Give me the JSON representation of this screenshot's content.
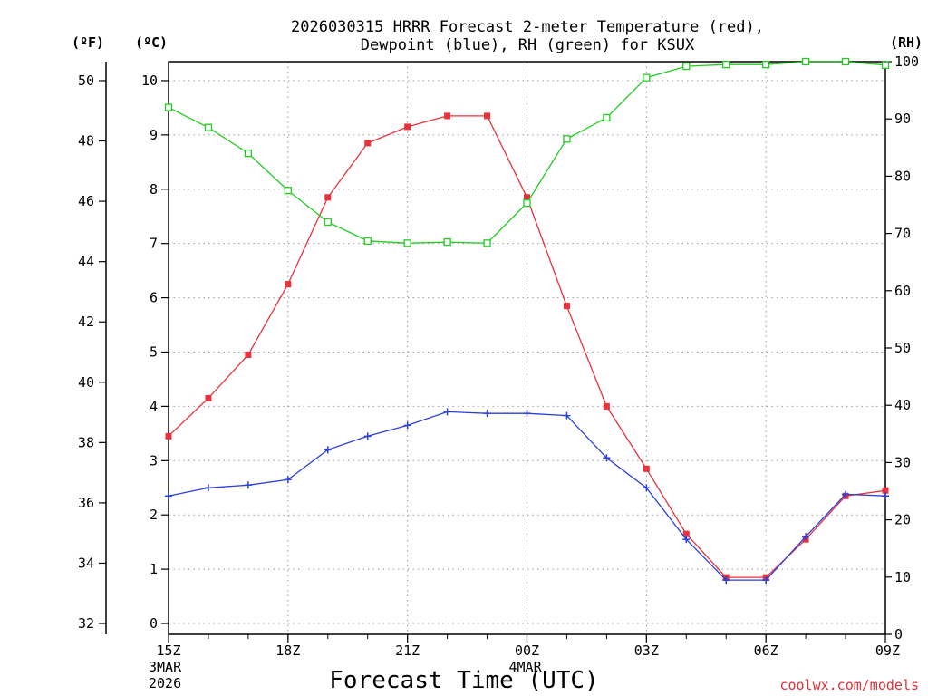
{
  "chart_data": {
    "type": "line",
    "title_line1": "2026030315 HRRR Forecast 2-meter Temperature (red),",
    "title_line2": "Dewpoint (blue), RH (green) for KSUX",
    "xlabel": "Forecast Time (UTC)",
    "credit": "coolwx.com/models",
    "units": {
      "left_f": "(ºF)",
      "left_c": "(ºC)",
      "right": "(RH)"
    },
    "x_tick_labels": [
      {
        "h": 0,
        "label": "15Z",
        "sub1": "3MAR",
        "sub2": "2026"
      },
      {
        "h": 3,
        "label": "18Z"
      },
      {
        "h": 6,
        "label": "21Z"
      },
      {
        "h": 9,
        "label": "00Z",
        "sub1": "4MAR"
      },
      {
        "h": 12,
        "label": "03Z"
      },
      {
        "h": 15,
        "label": "06Z"
      },
      {
        "h": 18,
        "label": "09Z"
      }
    ],
    "x_hours": [
      0,
      1,
      2,
      3,
      4,
      5,
      6,
      7,
      8,
      9,
      10,
      11,
      12,
      13,
      14,
      15,
      16,
      17,
      18
    ],
    "c_range": [
      -0.2,
      10.35
    ],
    "c_ticks": [
      0,
      1,
      2,
      3,
      4,
      5,
      6,
      7,
      8,
      9,
      10
    ],
    "f_ticks": [
      32,
      34,
      36,
      38,
      40,
      42,
      44,
      46,
      48,
      50
    ],
    "rh_range": [
      0,
      100
    ],
    "rh_ticks": [
      0,
      10,
      20,
      30,
      40,
      50,
      60,
      70,
      80,
      90,
      100
    ],
    "grid": true,
    "series": [
      {
        "name": "Temperature (red)",
        "axis": "c",
        "color": "#e8323c",
        "marker": "square",
        "values": [
          3.45,
          4.15,
          4.95,
          6.25,
          7.85,
          8.85,
          9.15,
          9.35,
          9.35,
          7.85,
          5.85,
          4.0,
          2.85,
          1.65,
          0.85,
          0.85,
          1.55,
          2.35,
          2.45
        ]
      },
      {
        "name": "Dewpoint (blue)",
        "axis": "c",
        "color": "#2b3fd9",
        "marker": "plus",
        "values": [
          2.35,
          2.5,
          2.55,
          2.65,
          3.2,
          3.45,
          3.65,
          3.9,
          3.87,
          3.87,
          3.83,
          3.05,
          2.5,
          1.55,
          0.8,
          0.8,
          1.6,
          2.38,
          2.35
        ]
      },
      {
        "name": "RH (green)",
        "axis": "rh",
        "color": "#22cc22",
        "marker": "open-square",
        "values": [
          92,
          88.5,
          84,
          77.5,
          72,
          68.7,
          68.3,
          68.5,
          68.3,
          75.3,
          86.5,
          90.2,
          97.2,
          99.2,
          99.5,
          99.5,
          100,
          100,
          99.4
        ]
      }
    ]
  }
}
